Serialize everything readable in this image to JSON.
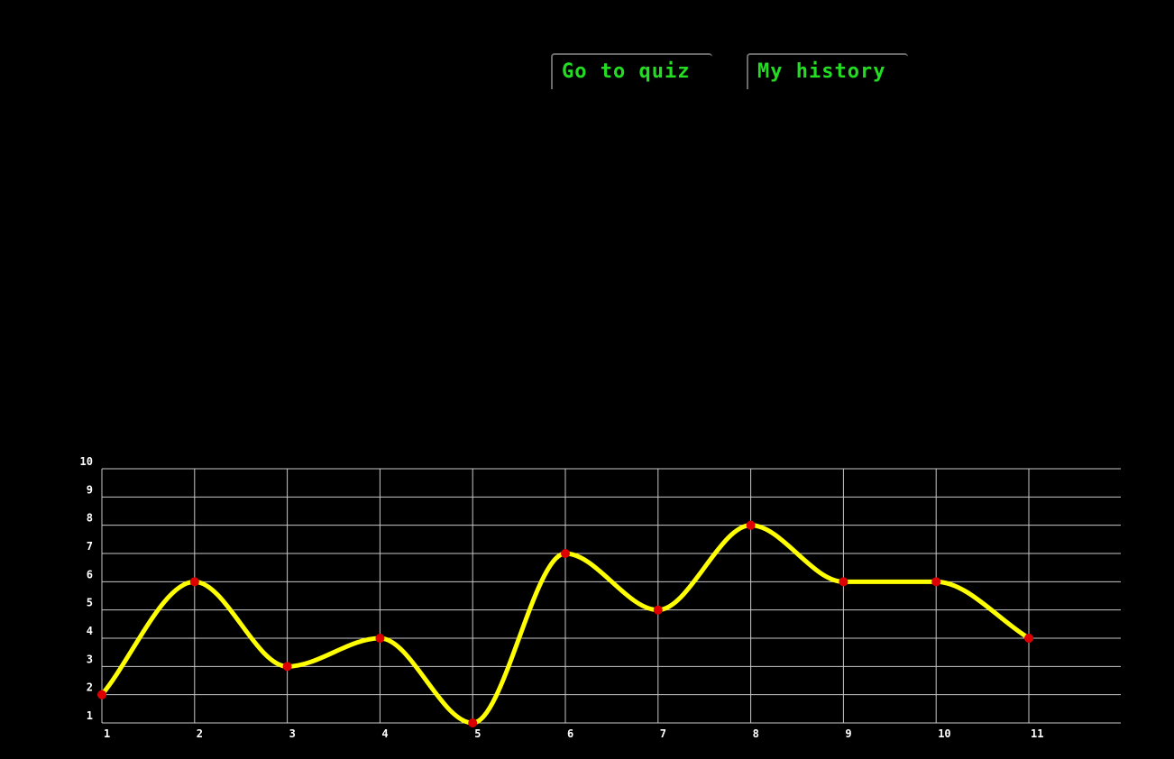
{
  "nav": {
    "quiz_label": "Go to quiz",
    "history_label": "My history"
  },
  "colors": {
    "background": "#000000",
    "button_text": "#22dd22",
    "line": "#ffff00",
    "point": "#dd0000",
    "grid": "#c8c8c8",
    "tick_text": "#ffffff"
  },
  "chart_data": {
    "type": "line",
    "title": "",
    "xlabel": "",
    "ylabel": "",
    "x": [
      1,
      2,
      3,
      4,
      5,
      6,
      7,
      8,
      9,
      10,
      11
    ],
    "y": [
      2,
      6,
      3,
      4,
      1,
      7,
      5,
      8,
      6,
      6,
      4
    ],
    "xlim": [
      1,
      12
    ],
    "ylim": [
      1,
      10
    ],
    "x_tick_labels": [
      "1",
      "2",
      "3",
      "4",
      "5",
      "6",
      "7",
      "8",
      "9",
      "10",
      "11"
    ],
    "y_tick_labels": [
      "1",
      "2",
      "3",
      "4",
      "5",
      "6",
      "7",
      "8",
      "9",
      "10"
    ],
    "grid": true,
    "smooth": true,
    "markers": true
  }
}
